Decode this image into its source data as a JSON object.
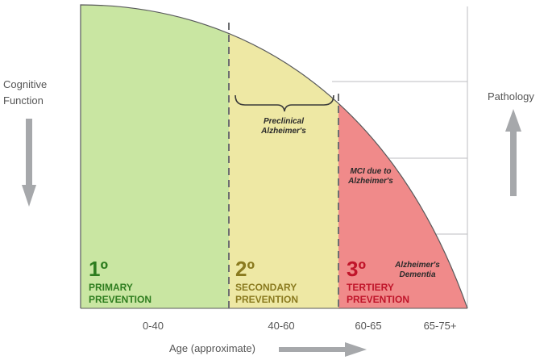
{
  "labels": {
    "y_left": "Cognitive Function",
    "y_left_line1": "Cognitive",
    "y_left_line2": "Function",
    "y_right": "Pathology",
    "x_axis": "Age (approximate)"
  },
  "x_ticks": [
    "0-40",
    "40-60",
    "60-65",
    "65-75+"
  ],
  "stages": [
    {
      "numeral": "1º",
      "line1": "PRIMARY",
      "line2": "PREVENTION",
      "fill": "#c9e6a2",
      "text_color": "#2e7d1f"
    },
    {
      "numeral": "2º",
      "line1": "SECONDARY",
      "line2": "PREVENTION",
      "fill": "#eee8a4",
      "text_color": "#8a7a1f"
    },
    {
      "numeral": "3º",
      "line1": "TERTIERY",
      "line2": "PREVENTION",
      "fill": "#f08a8a",
      "text_color": "#c0152a"
    }
  ],
  "annotations": {
    "preclinical_1": "Preclinical",
    "preclinical_2": "Alzheimer's",
    "mci_1": "MCI due to",
    "mci_2": "Alzheimer's",
    "dementia_1": "Alzheimer's",
    "dementia_2": "Dementia"
  },
  "colors": {
    "arrow": "#a6a8ab",
    "grid": "#bcbdc0",
    "divider": "#6d6e71",
    "outline": "#58595b"
  }
}
